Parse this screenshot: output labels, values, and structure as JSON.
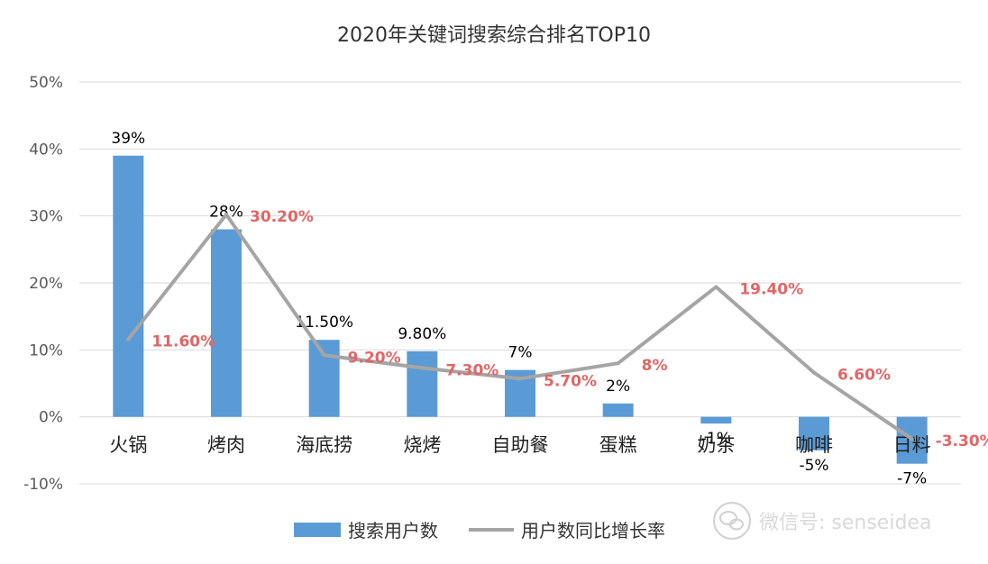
{
  "chart_data": {
    "type": "bar+line",
    "title": "2020年关键词搜索综合排名TOP10",
    "categories": [
      "火锅",
      "烤肉",
      "海底捞",
      "烧烤",
      "自助餐",
      "蛋糕",
      "奶茶",
      "咖啡",
      "日料"
    ],
    "series": [
      {
        "name": "搜索用户数",
        "type": "bar",
        "values": [
          39,
          28,
          11.5,
          9.8,
          7,
          2,
          -1,
          -5,
          -7
        ],
        "labels": [
          "39%",
          "28%",
          "11.50%",
          "9.80%",
          "7%",
          "2%",
          "-1%",
          "-5%",
          "-7%"
        ]
      },
      {
        "name": "用户数同比增长率",
        "type": "line",
        "values": [
          11.6,
          30.2,
          9.2,
          7.3,
          5.7,
          8,
          19.4,
          6.6,
          -3.3
        ],
        "labels": [
          "11.60%",
          "30.20%",
          "9.20%",
          "7.30%",
          "5.70%",
          "8%",
          "19.40%",
          "6.60%",
          "-3.30%"
        ]
      }
    ],
    "ylim": [
      -10,
      50
    ],
    "yticks": [
      "-10%",
      "0%",
      "10%",
      "20%",
      "30%",
      "40%",
      "50%"
    ],
    "grid": true,
    "legend": "bottom",
    "colors": {
      "bar": "#5b9bd5",
      "line": "#a5a5a5",
      "line_label": "#e06666",
      "text": "#000000",
      "grid": "#d9d9d9"
    }
  },
  "watermark": {
    "text": "微信号: senseidea",
    "icon": "wechat-icon"
  }
}
